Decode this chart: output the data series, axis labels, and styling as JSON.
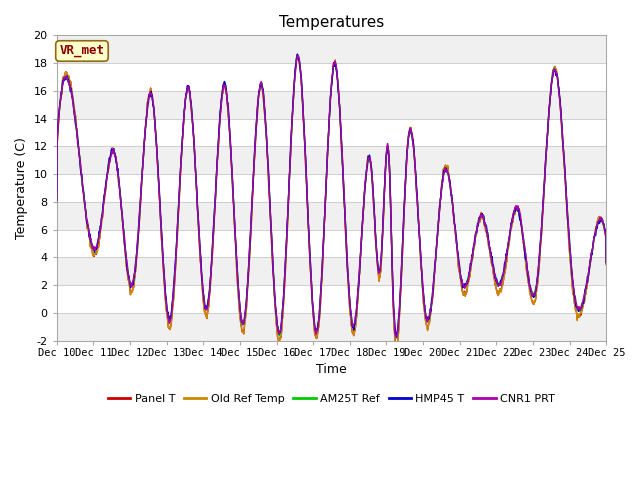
{
  "title": "Temperatures",
  "xlabel": "Time",
  "ylabel": "Temperature (C)",
  "ylim": [
    -2,
    20
  ],
  "xlim": [
    0,
    360
  ],
  "annotation": "VR_met",
  "fig_bg": "#ffffff",
  "plot_bg": "#ffffff",
  "band_colors": [
    "#f0f0f0",
    "#ffffff"
  ],
  "grid_color": "#c8c8c8",
  "legend": [
    "Panel T",
    "Old Ref Temp",
    "AM25T Ref",
    "HMP45 T",
    "CNR1 PRT"
  ],
  "line_colors": [
    "#cc0000",
    "#cc8800",
    "#00cc00",
    "#0000cc",
    "#aa00aa"
  ],
  "line_widths": [
    1.0,
    1.0,
    1.0,
    1.0,
    1.0
  ],
  "xtick_labels": [
    "Dec 10",
    "Dec 11",
    "Dec 12",
    "Dec 13",
    "Dec 14",
    "Dec 15",
    "Dec 16",
    "Dec 17",
    "Dec 18",
    "Dec 19",
    "Dec 20",
    "Dec 21",
    "Dec 22",
    "Dec 23",
    "Dec 24",
    "Dec 25"
  ],
  "xtick_positions": [
    0,
    24,
    48,
    72,
    96,
    120,
    144,
    168,
    192,
    216,
    240,
    264,
    288,
    312,
    336,
    360
  ],
  "ytick_positions": [
    -2,
    0,
    2,
    4,
    6,
    8,
    10,
    12,
    14,
    16,
    18,
    20
  ]
}
